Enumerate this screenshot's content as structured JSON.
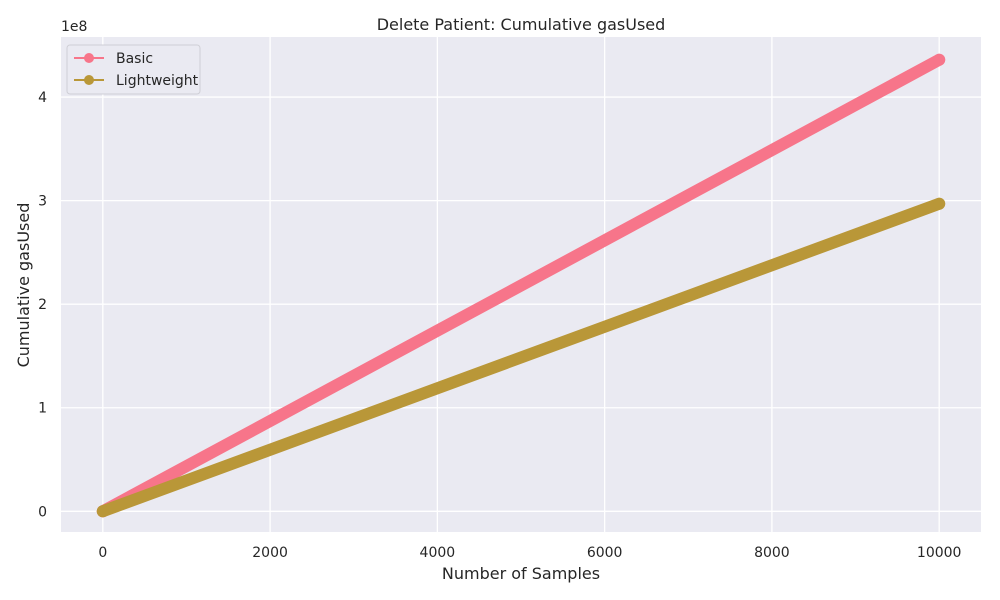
{
  "chart_data": {
    "type": "line",
    "title": "Delete Patient: Cumulative gasUsed",
    "xlabel": "Number of Samples",
    "ylabel": "Cumulative gasUsed",
    "y_offset_text": "1e8",
    "xlim": [
      -500,
      10500
    ],
    "ylim": [
      -0.2,
      4.58
    ],
    "y_unit_scale": 100000000,
    "x_ticks": [
      0,
      2000,
      4000,
      6000,
      8000,
      10000
    ],
    "y_ticks": [
      0,
      1,
      2,
      3,
      4
    ],
    "grid": true,
    "legend_position": "top-left",
    "background_color": "#eaeaf2",
    "series": [
      {
        "name": "Basic",
        "color": "#f7758a",
        "x_range": [
          0,
          10000
        ],
        "y_range": [
          0,
          4.36
        ]
      },
      {
        "name": "Lightweight",
        "color": "#b99738",
        "x_range": [
          0,
          10000
        ],
        "y_range": [
          0,
          2.97
        ]
      }
    ]
  }
}
